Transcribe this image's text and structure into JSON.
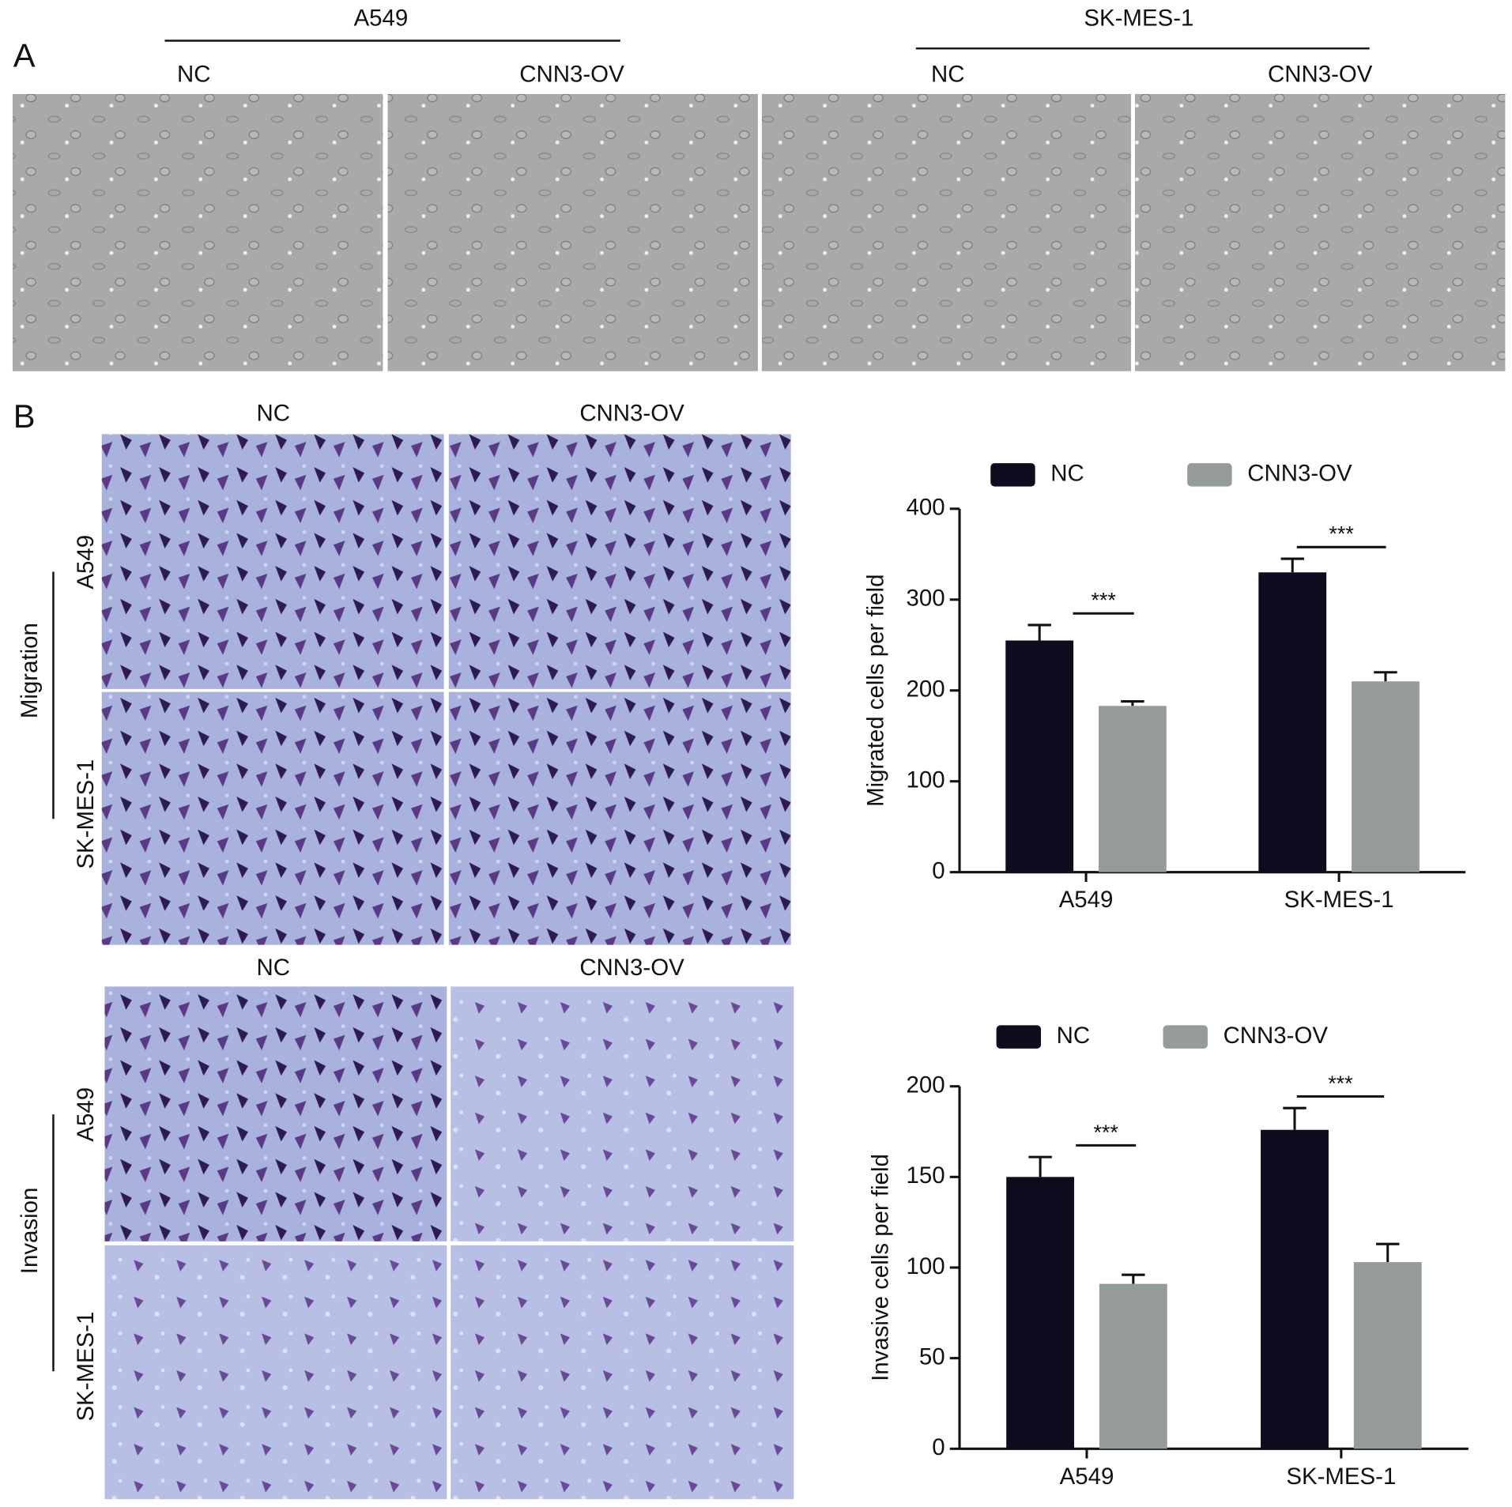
{
  "panel_a": {
    "label": "A",
    "groups": [
      "A549",
      "SK-MES-1"
    ],
    "conditions": [
      "NC",
      "CNN3-OV",
      "NC",
      "CNN3-OV"
    ]
  },
  "panel_b": {
    "label": "B",
    "migration": {
      "title": "Migration",
      "columns": [
        "NC",
        "CNN3-OV"
      ],
      "rows": [
        "A549",
        "SK-MES-1"
      ]
    },
    "invasion": {
      "title": "Invasion",
      "columns": [
        "NC",
        "CNN3-OV"
      ],
      "rows": [
        "A549",
        "SK-MES-1"
      ]
    }
  },
  "chart_data": [
    {
      "type": "bar",
      "y_label": "Migrated cells per field",
      "categories": [
        "A549",
        "SK-MES-1"
      ],
      "series": [
        {
          "name": "NC",
          "color": "#0d0d1f",
          "values": [
            255,
            330
          ],
          "errors": [
            17,
            15
          ]
        },
        {
          "name": "CNN3-OV",
          "color": "#959b99",
          "values": [
            183,
            210
          ],
          "errors": [
            5,
            10
          ]
        }
      ],
      "ylim": [
        0,
        400
      ],
      "yticks": [
        0,
        100,
        200,
        300,
        400
      ],
      "legend": "top",
      "annotations": [
        "***",
        "***"
      ]
    },
    {
      "type": "bar",
      "y_label": "Invasive cells per field",
      "categories": [
        "A549",
        "SK-MES-1"
      ],
      "series": [
        {
          "name": "NC",
          "color": "#0d0d1f",
          "values": [
            150,
            176
          ],
          "errors": [
            11,
            12
          ]
        },
        {
          "name": "CNN3-OV",
          "color": "#959b99",
          "values": [
            91,
            103
          ],
          "errors": [
            5,
            10
          ]
        }
      ],
      "ylim": [
        0,
        200
      ],
      "yticks": [
        0,
        50,
        100,
        150,
        200
      ],
      "legend": "top",
      "annotations": [
        "***",
        "***"
      ]
    }
  ]
}
